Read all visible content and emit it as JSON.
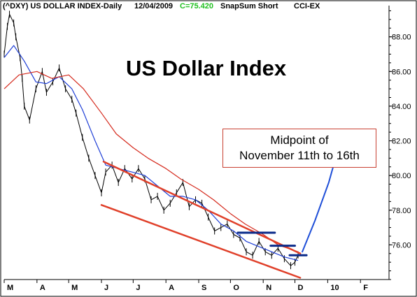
{
  "header": {
    "symbol": "(^DXY) US DOLLAR INDEX-Daily",
    "date": "12/04/2009",
    "close": "C=75.420",
    "study1": "SnapSum Short",
    "study2": "CCI-EX"
  },
  "annotations": {
    "title": "US Dollar Index",
    "callout_line1": "Midpoint of",
    "callout_line2": "November 11th to 16th"
  },
  "colors": {
    "price": "#000000",
    "ma_short": "#1f3fd6",
    "ma_long": "#d52b1e",
    "channel": "#e0402a",
    "levels": "#0a2a8a",
    "projection": "#1f4fd8",
    "callout_border": "#c84032",
    "close_text": "#20c020"
  },
  "chart_data": {
    "type": "line",
    "title": "",
    "xlabel": "",
    "ylabel": "",
    "x_ticks": [
      "M",
      "A",
      "M",
      "J",
      "J",
      "A",
      "S",
      "O",
      "N",
      "D",
      "10",
      "F"
    ],
    "x_range": [
      "2009-03-01",
      "2010-02-28"
    ],
    "ylim": [
      74,
      89.8
    ],
    "y_ticks": [
      76.0,
      78.0,
      80.0,
      82.0,
      84.0,
      86.0,
      88.0
    ],
    "y_tick_labels": [
      "76.00",
      "78.00",
      "80.00",
      "82.00",
      "84.00",
      "86.00",
      "88.00"
    ],
    "grid": false,
    "y_axis_position": "right",
    "series": [
      {
        "kind": "price",
        "x": [
          "2009-03-01",
          "2009-03-04",
          "2009-03-06",
          "2009-03-10",
          "2009-03-12",
          "2009-03-16",
          "2009-03-18",
          "2009-03-20",
          "2009-03-25",
          "2009-03-31",
          "2009-04-06",
          "2009-04-10",
          "2009-04-16",
          "2009-04-22",
          "2009-04-28",
          "2009-05-04",
          "2009-05-08",
          "2009-05-14",
          "2009-05-20",
          "2009-05-26",
          "2009-06-01",
          "2009-06-05",
          "2009-06-11",
          "2009-06-17",
          "2009-06-23",
          "2009-06-30",
          "2009-07-06",
          "2009-07-12",
          "2009-07-18",
          "2009-07-24",
          "2009-07-30",
          "2009-08-05",
          "2009-08-11",
          "2009-08-17",
          "2009-08-23",
          "2009-08-29",
          "2009-09-04",
          "2009-09-10",
          "2009-09-16",
          "2009-09-22",
          "2009-09-28",
          "2009-10-04",
          "2009-10-10",
          "2009-10-16",
          "2009-10-22",
          "2009-10-28",
          "2009-11-03",
          "2009-11-09",
          "2009-11-15",
          "2009-11-21",
          "2009-11-27",
          "2009-12-01",
          "2009-12-04"
        ],
        "values": [
          87.0,
          88.6,
          89.3,
          88.8,
          88.0,
          86.8,
          85.6,
          84.0,
          83.2,
          85.0,
          86.0,
          84.8,
          85.4,
          86.2,
          85.0,
          84.4,
          83.6,
          82.2,
          81.0,
          80.0,
          79.0,
          80.2,
          80.6,
          79.6,
          80.4,
          79.8,
          80.4,
          79.8,
          78.6,
          78.8,
          78.0,
          78.4,
          79.0,
          79.6,
          78.2,
          78.6,
          78.4,
          77.6,
          76.8,
          77.0,
          77.2,
          76.6,
          76.4,
          75.6,
          75.4,
          76.2,
          75.6,
          75.4,
          75.8,
          75.2,
          74.8,
          75.0,
          75.42
        ]
      },
      {
        "kind": "ma_short",
        "x": [
          "2009-03-01",
          "2009-03-10",
          "2009-03-20",
          "2009-03-31",
          "2009-04-10",
          "2009-04-22",
          "2009-05-04",
          "2009-05-14",
          "2009-05-26",
          "2009-06-05",
          "2009-06-17",
          "2009-06-30",
          "2009-07-12",
          "2009-07-24",
          "2009-08-05",
          "2009-08-17",
          "2009-08-29",
          "2009-09-10",
          "2009-09-22",
          "2009-10-04",
          "2009-10-16",
          "2009-10-28",
          "2009-11-09",
          "2009-11-21",
          "2009-12-04"
        ],
        "values": [
          86.8,
          87.5,
          86.6,
          85.4,
          85.3,
          85.7,
          85.0,
          83.8,
          82.0,
          80.6,
          80.4,
          80.2,
          80.0,
          79.4,
          78.8,
          78.8,
          78.6,
          78.0,
          77.2,
          76.8,
          76.2,
          75.9,
          75.6,
          75.3,
          75.1
        ]
      },
      {
        "kind": "ma_long",
        "x": [
          "2009-03-01",
          "2009-03-15",
          "2009-04-01",
          "2009-04-15",
          "2009-05-01",
          "2009-05-15",
          "2009-06-01",
          "2009-06-15",
          "2009-07-01",
          "2009-07-15",
          "2009-08-01",
          "2009-08-15",
          "2009-09-01",
          "2009-09-15",
          "2009-10-01",
          "2009-10-15",
          "2009-11-01",
          "2009-11-15",
          "2009-12-04"
        ],
        "values": [
          85.0,
          85.8,
          86.0,
          85.6,
          85.8,
          85.0,
          83.6,
          82.4,
          81.6,
          81.0,
          80.4,
          79.8,
          79.2,
          78.6,
          77.8,
          77.2,
          76.6,
          76.0,
          75.6
        ]
      }
    ],
    "overlays": [
      {
        "kind": "channel_upper",
        "x": [
          "2009-06-03",
          "2009-12-06"
        ],
        "y": [
          80.8,
          75.5
        ]
      },
      {
        "kind": "channel_lower",
        "x": [
          "2009-06-01",
          "2009-12-06"
        ],
        "y": [
          78.3,
          74.1
        ]
      },
      {
        "kind": "level",
        "x": [
          "2009-10-08",
          "2009-11-12"
        ],
        "y": [
          76.7,
          76.7
        ]
      },
      {
        "kind": "level",
        "x": [
          "2009-11-08",
          "2009-12-01"
        ],
        "y": [
          75.95,
          75.95
        ]
      },
      {
        "kind": "level",
        "x": [
          "2009-11-26",
          "2009-12-12"
        ],
        "y": [
          75.4,
          75.4
        ]
      },
      {
        "kind": "projection",
        "x": [
          "2009-12-08",
          "2009-12-20",
          "2010-01-02",
          "2010-01-08"
        ],
        "y": [
          75.6,
          77.4,
          79.6,
          80.9
        ]
      }
    ]
  }
}
